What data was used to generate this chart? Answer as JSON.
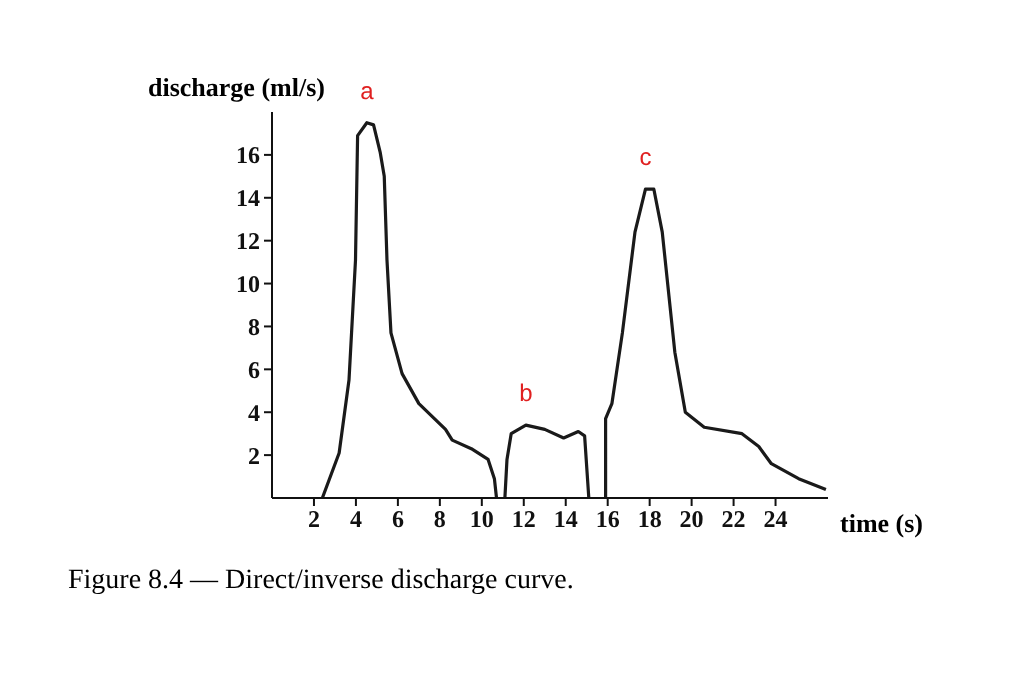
{
  "chart_data": {
    "type": "line",
    "xlabel": "time (s)",
    "ylabel": "discharge (ml/s)",
    "x": [
      2.4,
      3.2,
      3.67,
      3.98,
      4.08,
      4.52,
      4.84,
      5.16,
      5.35,
      5.48,
      5.67,
      6.2,
      7.0,
      8.27,
      8.59,
      9.5,
      10.3,
      10.6,
      10.7,
      10.9,
      11.1,
      11.2,
      11.4,
      12.1,
      13.0,
      13.9,
      14.6,
      14.9,
      15.1,
      15.5,
      15.9,
      15.9,
      16.2,
      16.7,
      17.3,
      17.8,
      18.2,
      18.6,
      19.2,
      19.7,
      20.6,
      22.4,
      23.2,
      23.8,
      25.1,
      26.4
    ],
    "series": [
      {
        "color": "#1a1a1a",
        "values": [
          0,
          2.1,
          5.5,
          11.1,
          16.9,
          17.5,
          17.4,
          16.1,
          15.0,
          11.1,
          7.7,
          5.8,
          4.4,
          3.2,
          2.7,
          2.3,
          1.8,
          0.9,
          0,
          null,
          0,
          1.8,
          3.0,
          3.4,
          3.2,
          2.8,
          3.1,
          2.9,
          0,
          null,
          0,
          3.7,
          4.4,
          7.7,
          12.4,
          14.4,
          14.4,
          12.4,
          6.8,
          4.0,
          3.3,
          3.0,
          2.4,
          1.6,
          0.9,
          0.4
        ]
      }
    ],
    "xlim": [
      0,
      26.5
    ],
    "ylim": [
      0,
      18
    ],
    "xticks": [
      2,
      4,
      6,
      8,
      10,
      12,
      14,
      16,
      18,
      20,
      22,
      24
    ],
    "yticks": [
      2,
      4,
      6,
      8,
      10,
      12,
      14,
      16
    ],
    "grid": false,
    "legend": false,
    "marker": "none",
    "line_style": "solid",
    "annotations": [
      {
        "text": "a",
        "x": 4.52,
        "y": 17.5
      },
      {
        "text": "b",
        "x": 12.1,
        "y": 3.4
      },
      {
        "text": "c",
        "x": 17.8,
        "y": 14.4
      },
      "Figure 8.4 — Direct/inverse discharge curve."
    ]
  }
}
